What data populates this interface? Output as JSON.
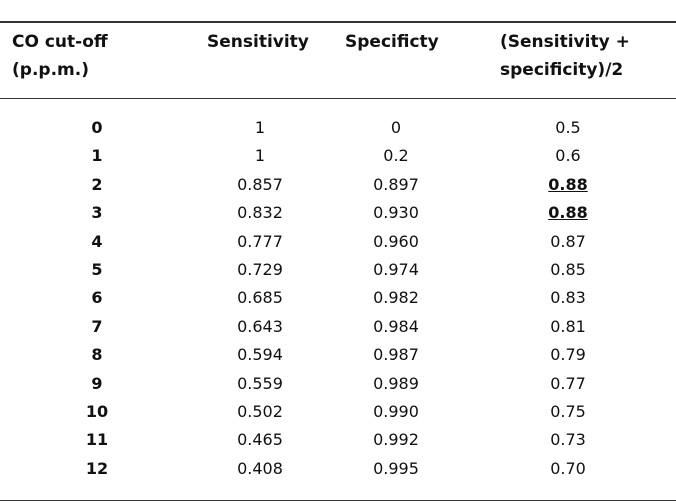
{
  "headers": [
    "CO cut-off",
    "(p.p.m.)",
    "Sensitivity",
    "Specificty",
    "(Sensitivity +",
    "specificity)/2"
  ],
  "rows": [
    [
      "0",
      "1",
      "0",
      "0.5",
      false
    ],
    [
      "1",
      "1",
      "0.2",
      "0.6",
      false
    ],
    [
      "2",
      "0.857",
      "0.897",
      "0.88",
      true
    ],
    [
      "3",
      "0.832",
      "0.930",
      "0.88",
      true
    ],
    [
      "4",
      "0.777",
      "0.960",
      "0.87",
      false
    ],
    [
      "5",
      "0.729",
      "0.974",
      "0.85",
      false
    ],
    [
      "6",
      "0.685",
      "0.982",
      "0.83",
      false
    ],
    [
      "7",
      "0.643",
      "0.984",
      "0.81",
      false
    ],
    [
      "8",
      "0.594",
      "0.987",
      "0.79",
      false
    ],
    [
      "9",
      "0.559",
      "0.989",
      "0.77",
      false
    ],
    [
      "10",
      "0.502",
      "0.990",
      "0.75",
      false
    ],
    [
      "11",
      "0.465",
      "0.992",
      "0.73",
      false
    ],
    [
      "12",
      "0.408",
      "0.995",
      "0.70",
      false
    ]
  ]
}
